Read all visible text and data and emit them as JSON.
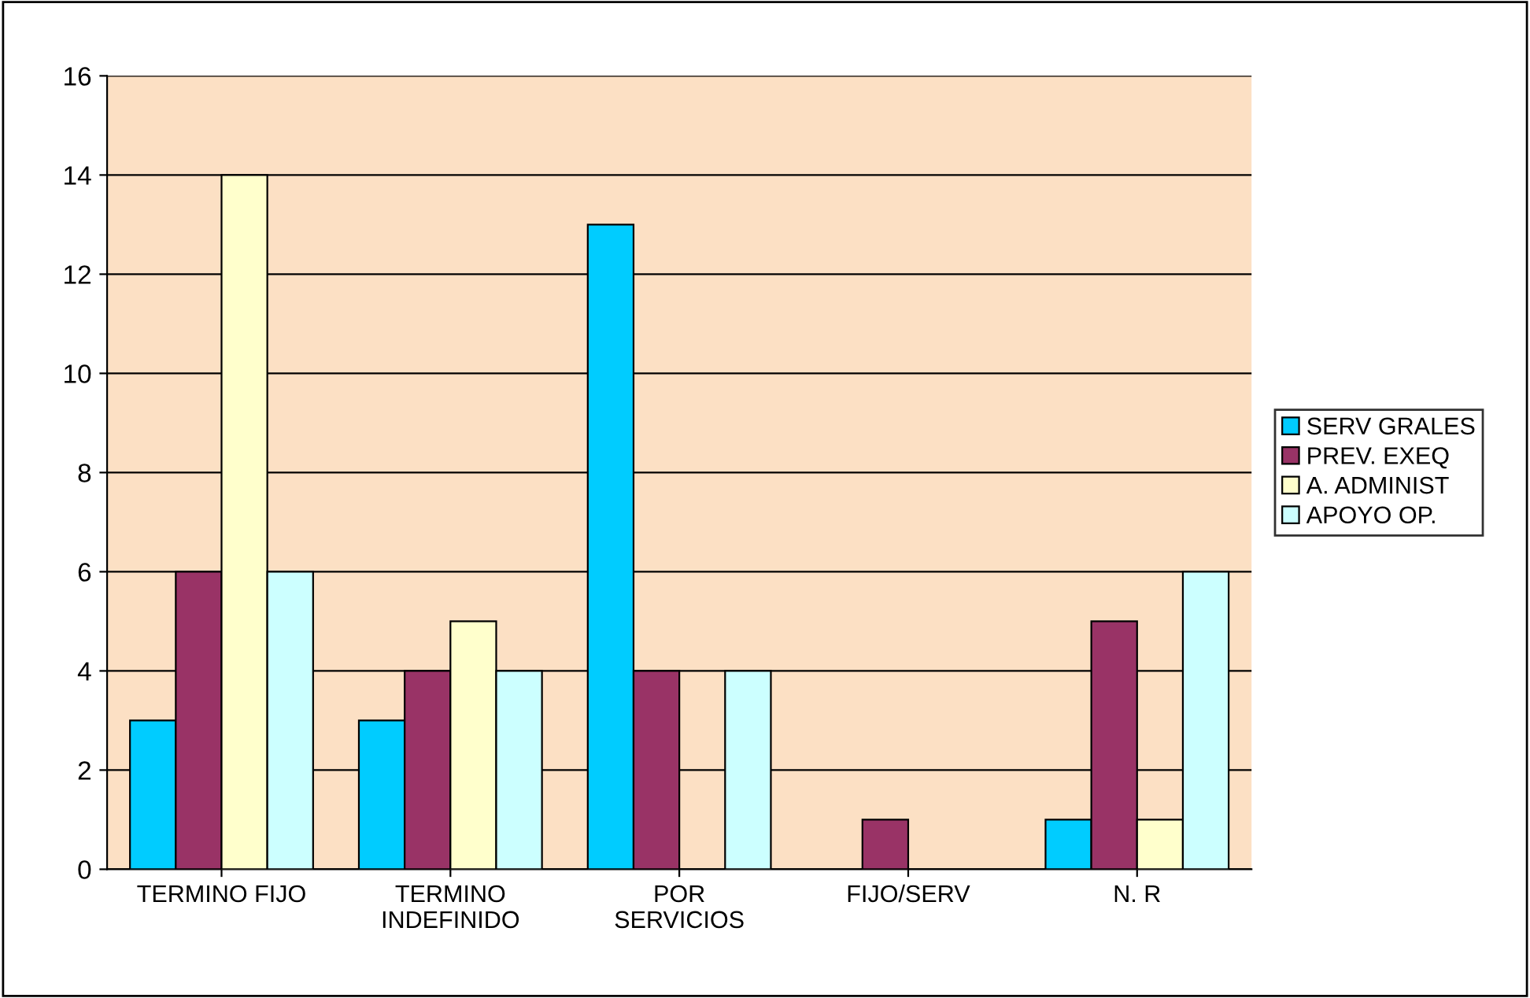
{
  "chart_data": {
    "type": "bar",
    "categories": [
      "TERMINO FIJO",
      "TERMINO\nINDEFINIDO",
      "POR\nSERVICIOS",
      "FIJO/SERV",
      "N. R"
    ],
    "series": [
      {
        "name": "SERV GRALES",
        "color": "#00ccff",
        "values": [
          3,
          3,
          13,
          null,
          1
        ]
      },
      {
        "name": "PREV. EXEQ",
        "color": "#993366",
        "values": [
          6,
          4,
          4,
          1,
          5
        ]
      },
      {
        "name": "A. ADMINIST",
        "color": "#ffffcc",
        "values": [
          14,
          5,
          null,
          null,
          1
        ]
      },
      {
        "name": "APOYO OP.",
        "color": "#ccffff",
        "values": [
          6,
          4,
          4,
          null,
          6
        ]
      }
    ],
    "ylim": [
      0,
      16
    ],
    "yticks": [
      0,
      2,
      4,
      6,
      8,
      10,
      12,
      14,
      16
    ],
    "grid": "y",
    "legend": "right"
  }
}
